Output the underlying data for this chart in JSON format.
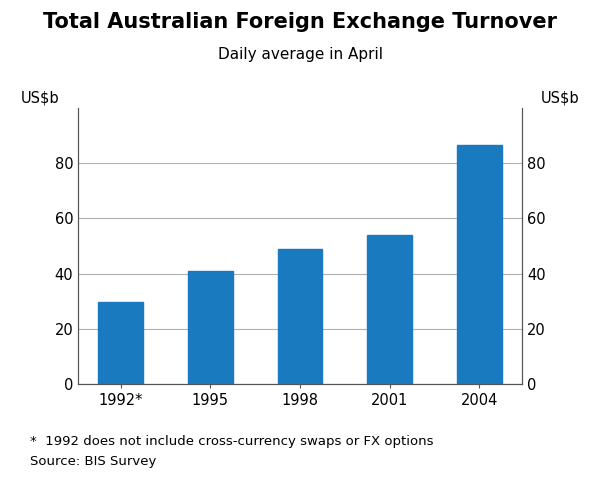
{
  "title": "Total Australian Foreign Exchange Turnover",
  "subtitle": "Daily average in April",
  "categories": [
    "1992*",
    "1995",
    "1998",
    "2001",
    "2004"
  ],
  "values": [
    29.5,
    41.0,
    49.0,
    54.0,
    86.5
  ],
  "bar_color": "#1a7abf",
  "ylabel_left": "US$b",
  "ylabel_right": "US$b",
  "ylim": [
    0,
    100
  ],
  "yticks": [
    0,
    20,
    40,
    60,
    80
  ],
  "footnote1": "*  1992 does not include cross-currency swaps or FX options",
  "footnote2": "Source: BIS Survey",
  "title_fontsize": 15,
  "subtitle_fontsize": 11,
  "tick_fontsize": 10.5,
  "label_fontsize": 10.5,
  "footnote_fontsize": 9.5,
  "bar_width": 0.5,
  "background_color": "#ffffff",
  "grid_color": "#b0b0b0",
  "spine_color": "#555555"
}
